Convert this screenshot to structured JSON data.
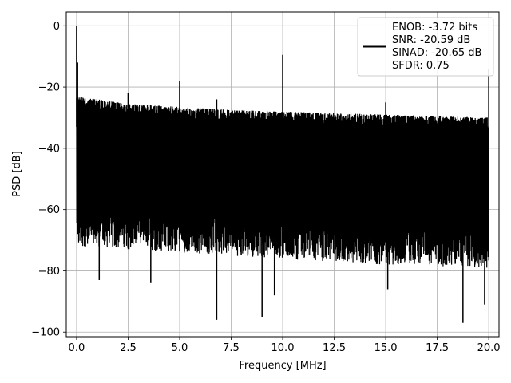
{
  "chart_data": {
    "type": "line",
    "title": "",
    "xlabel": "Frequency [MHz]",
    "ylabel": "PSD [dB]",
    "xlim": [
      -0.5,
      20.5
    ],
    "ylim": [
      -101.5,
      4.5
    ],
    "xticks": [
      0.0,
      2.5,
      5.0,
      7.5,
      10.0,
      12.5,
      15.0,
      17.5,
      20.0
    ],
    "xtick_labels": [
      "0.0",
      "2.5",
      "5.0",
      "7.5",
      "10.0",
      "12.5",
      "15.0",
      "17.5",
      "20.0"
    ],
    "yticks": [
      0,
      -20,
      -40,
      -60,
      -80,
      -100
    ],
    "ytick_labels": [
      "0",
      "−20",
      "−40",
      "−60",
      "−80",
      "−100"
    ],
    "grid": true,
    "legend_position": "top-right",
    "legend_lines": [
      "ENOB: -3.72 bits",
      "SNR: -20.59 dB",
      "SINAD: -20.65 dB",
      "SFDR: 0.75"
    ],
    "line_color": "#000000",
    "series": [
      {
        "noise_ceiling": [
          [
            0.0,
            -23
          ],
          [
            1.0,
            -24
          ],
          [
            2.5,
            -25.5
          ],
          [
            5.0,
            -26.5
          ],
          [
            7.5,
            -27.5
          ],
          [
            10.0,
            -28
          ],
          [
            12.5,
            -28.5
          ],
          [
            15.0,
            -29
          ],
          [
            17.5,
            -29.5
          ],
          [
            20.0,
            -30
          ]
        ],
        "noise_floor": [
          [
            0.0,
            -66
          ],
          [
            5.0,
            -68
          ],
          [
            10.0,
            -70
          ],
          [
            15.0,
            -72
          ],
          [
            20.0,
            -73
          ]
        ],
        "spurs": [
          {
            "x": 0.0,
            "y": 0
          },
          {
            "x": 0.05,
            "y": -12
          },
          {
            "x": 2.5,
            "y": -22
          },
          {
            "x": 5.0,
            "y": -18
          },
          {
            "x": 6.8,
            "y": -24
          },
          {
            "x": 10.0,
            "y": -9.5
          },
          {
            "x": 15.0,
            "y": -25
          },
          {
            "x": 20.0,
            "y": -14
          }
        ],
        "dips": [
          {
            "x": 1.1,
            "y": -83
          },
          {
            "x": 3.6,
            "y": -84
          },
          {
            "x": 6.8,
            "y": -96
          },
          {
            "x": 9.0,
            "y": -95
          },
          {
            "x": 9.6,
            "y": -88
          },
          {
            "x": 15.1,
            "y": -86
          },
          {
            "x": 18.75,
            "y": -97
          },
          {
            "x": 19.8,
            "y": -91
          }
        ]
      }
    ]
  }
}
